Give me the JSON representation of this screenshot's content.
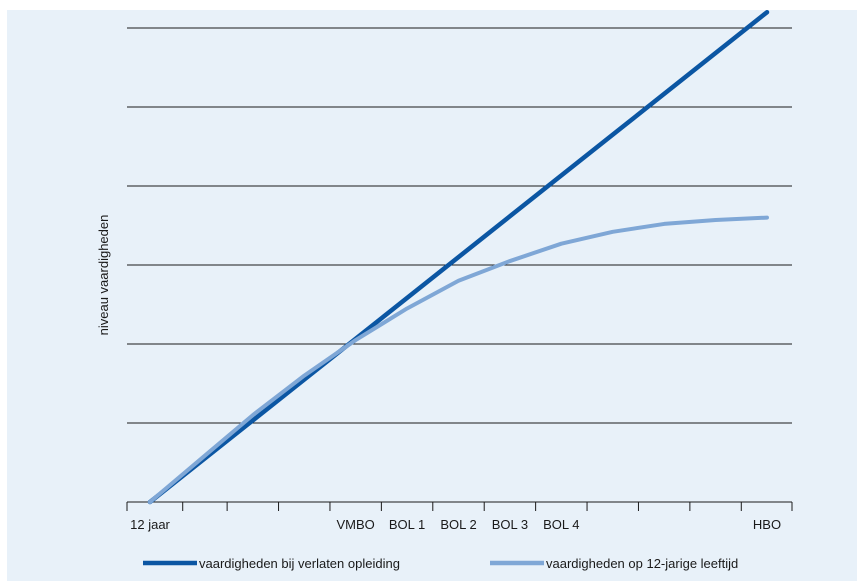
{
  "chart_data": {
    "type": "line",
    "xlabel": "",
    "ylabel": "niveau vaardigheden",
    "categories": [
      "12 jaar",
      "VMBO",
      "BOL 1",
      "BOL 2",
      "BOL 3",
      "BOL 4",
      "HBO"
    ],
    "tick_positions": [
      0,
      1,
      2,
      3,
      4,
      5,
      6,
      7,
      8,
      9,
      10,
      11,
      12
    ],
    "tick_labels": [
      "12 jaar",
      "",
      "",
      "",
      "VMBO",
      "BOL 1",
      "BOL 2",
      "BOL 3",
      "BOL 4",
      "",
      "",
      "",
      "HBO"
    ],
    "xlim": [
      -0.5,
      12.8
    ],
    "ylim": [
      0,
      6
    ],
    "grid": "horizontal",
    "legend_position": "bottom",
    "series": [
      {
        "name": "vaardigheden bij verlaten opleiding",
        "color": "#0b56a3",
        "x": [
          0,
          12
        ],
        "y": [
          0,
          6.2
        ]
      },
      {
        "name": "vaardigheden op 12-jarige leeftijd",
        "color": "#7fa7d6",
        "x": [
          0,
          1,
          2,
          3,
          4,
          5,
          6,
          7,
          8,
          9,
          10,
          11,
          12
        ],
        "y": [
          0,
          0.55,
          1.1,
          1.6,
          2.05,
          2.45,
          2.8,
          3.05,
          3.27,
          3.42,
          3.52,
          3.57,
          3.6
        ]
      }
    ]
  }
}
